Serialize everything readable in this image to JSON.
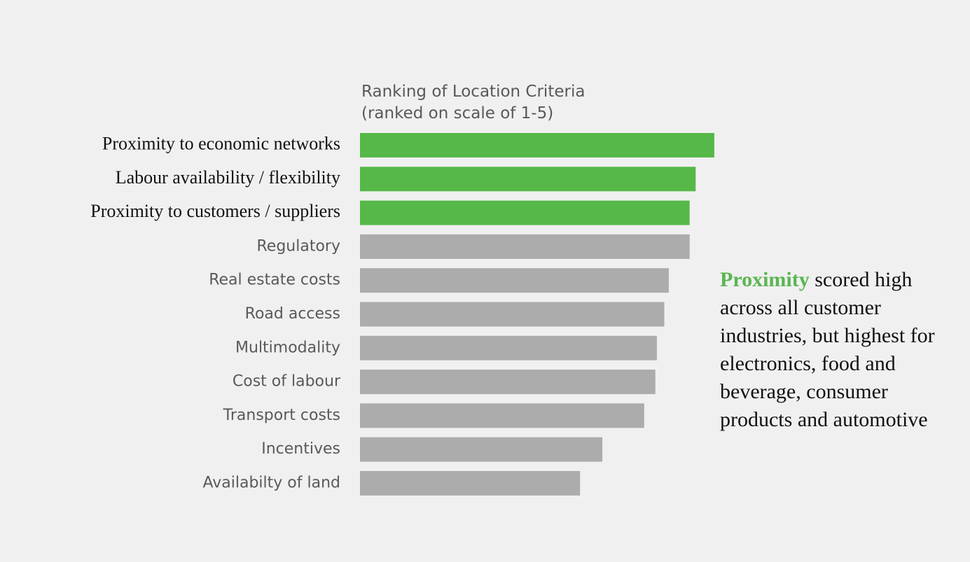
{
  "chart_data": {
    "type": "bar",
    "orientation": "horizontal",
    "title": "Ranking of Location Criteria",
    "subtitle": "(ranked on scale of 1-5)",
    "xlim": [
      0,
      5
    ],
    "grid": false,
    "categories": [
      "Proximity to economic networks",
      "Labour availability / flexibility",
      "Proximity to customers / suppliers",
      "Regulatory",
      "Real estate costs",
      "Road access",
      "Multimodality",
      "Cost of labour",
      "Transport costs",
      "Incentives",
      "Availabilty of land"
    ],
    "values": [
      4.75,
      4.5,
      4.42,
      4.42,
      4.14,
      4.08,
      3.98,
      3.96,
      3.81,
      3.25,
      2.95
    ],
    "highlighted": [
      true,
      true,
      true,
      false,
      false,
      false,
      false,
      false,
      false,
      false,
      false
    ]
  },
  "colors": {
    "highlight": "#55b849",
    "default": "#acacac",
    "highlight_label": "#111111",
    "default_label": "#595959",
    "note_highlight": "#5ab651"
  },
  "note": {
    "highlight": "Proximity",
    "text": " scored high across all customer industries, but highest for electronics, food and beverage, consumer products and automotive"
  }
}
